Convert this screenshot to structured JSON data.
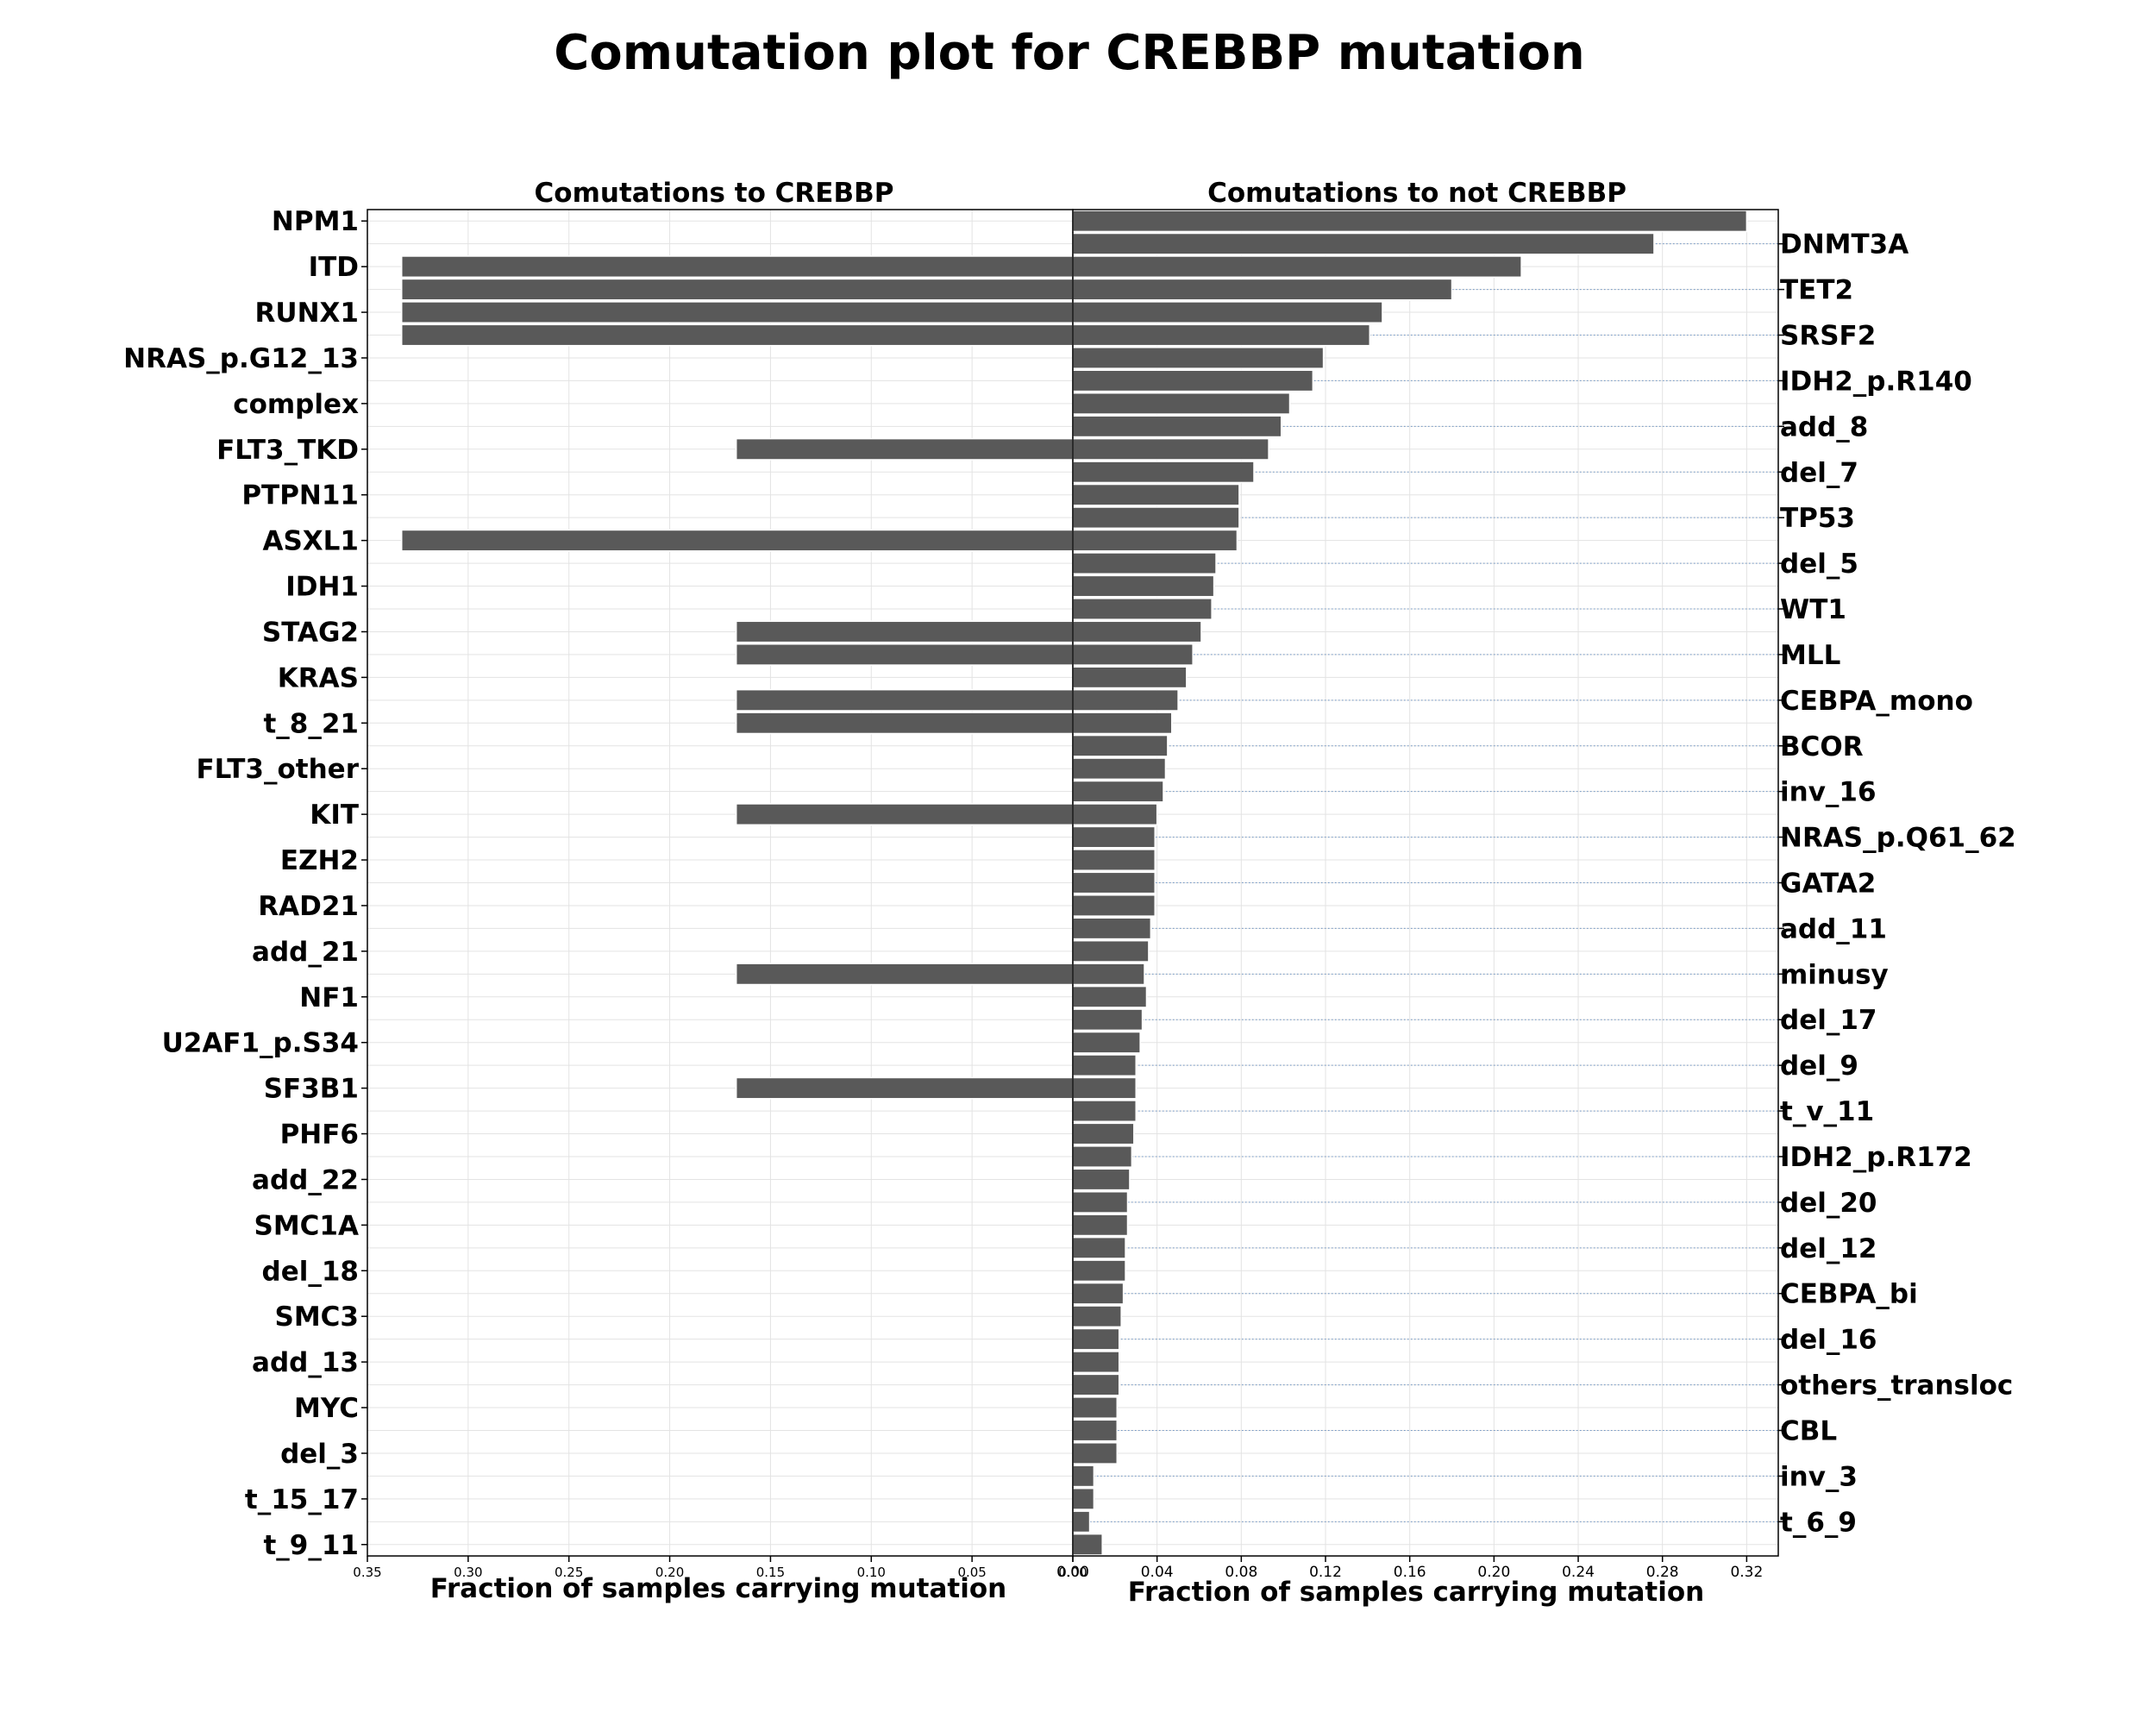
{
  "chart_data": {
    "type": "bar",
    "title": "Comutation plot for CREBBP mutation",
    "left_panel": {
      "title": "Comutations to CREBBP",
      "xlabel": "Fraction of samples carrying mutation",
      "xlim": [
        0.35,
        0.0
      ],
      "ticks": [
        "0.35",
        "0.30",
        "0.25",
        "0.20",
        "0.15",
        "0.10",
        "0.05",
        "0.00"
      ]
    },
    "right_panel": {
      "title": "Comutations to not CREBBP",
      "xlabel": "Fraction of samples carrying mutation",
      "xlim": [
        0.0,
        0.335
      ],
      "ticks": [
        "0.00",
        "0.04",
        "0.08",
        "0.12",
        "0.16",
        "0.20",
        "0.24",
        "0.28",
        "0.32"
      ]
    },
    "left_labels": [
      "NPM1",
      "ITD",
      "RUNX1",
      "NRAS_p.G12_13",
      "complex",
      "FLT3_TKD",
      "PTPN11",
      "ASXL1",
      "IDH1",
      "STAG2",
      "KRAS",
      "t_8_21",
      "FLT3_other",
      "KIT",
      "EZH2",
      "RAD21",
      "add_21",
      "NF1",
      "U2AF1_p.S34",
      "SF3B1",
      "PHF6",
      "add_22",
      "SMC1A",
      "del_18",
      "SMC3",
      "add_13",
      "MYC",
      "del_3",
      "t_15_17",
      "t_9_11"
    ],
    "right_labels": [
      "DNMT3A",
      "TET2",
      "SRSF2",
      "IDH2_p.R140",
      "add_8",
      "del_7",
      "TP53",
      "del_5",
      "WT1",
      "MLL",
      "CEBPA_mono",
      "BCOR",
      "inv_16",
      "NRAS_p.Q61_62",
      "GATA2",
      "add_11",
      "minusy",
      "del_17",
      "del_9",
      "t_v_11",
      "IDH2_p.R172",
      "del_20",
      "del_12",
      "CEBPA_bi",
      "del_16",
      "others_transloc",
      "CBL",
      "inv_3",
      "t_6_9"
    ],
    "categories": [
      "NPM1",
      "DNMT3A",
      "ITD",
      "TET2",
      "RUNX1",
      "SRSF2",
      "NRAS_p.G12_13",
      "IDH2_p.R140",
      "complex",
      "add_8",
      "FLT3_TKD",
      "del_7",
      "PTPN11",
      "TP53",
      "ASXL1",
      "del_5",
      "IDH1",
      "WT1",
      "STAG2",
      "MLL",
      "KRAS",
      "CEBPA_mono",
      "t_8_21",
      "BCOR",
      "FLT3_other",
      "inv_16",
      "KIT",
      "NRAS_p.Q61_62",
      "EZH2",
      "GATA2",
      "RAD21",
      "add_11",
      "add_21",
      "minusy",
      "NF1",
      "del_17",
      "U2AF1_p.S34",
      "del_9",
      "SF3B1",
      "t_v_11",
      "PHF6",
      "IDH2_p.R172",
      "add_22",
      "del_20",
      "SMC1A",
      "del_12",
      "del_18",
      "CEBPA_bi",
      "SMC3",
      "del_16",
      "add_13",
      "others_transloc",
      "MYC",
      "CBL",
      "del_3",
      "inv_3",
      "t_15_17",
      "t_6_9",
      "t_9_11"
    ],
    "series": [
      {
        "name": "Comutations to CREBBP",
        "values": [
          0,
          0,
          0.333,
          0.333,
          0.333,
          0.333,
          0,
          0,
          0,
          0,
          0.167,
          0,
          0,
          0,
          0.333,
          0,
          0,
          0,
          0.167,
          0.167,
          0,
          0.167,
          0.167,
          0,
          0,
          0,
          0.167,
          0,
          0,
          0,
          0,
          0,
          0,
          0.167,
          0,
          0,
          0,
          0,
          0.167,
          0,
          0,
          0,
          0,
          0,
          0,
          0,
          0,
          0,
          0,
          0,
          0,
          0,
          0,
          0,
          0,
          0,
          0,
          0,
          0
        ]
      },
      {
        "name": "Comutations to not CREBBP",
        "values": [
          0.32,
          0.276,
          0.213,
          0.18,
          0.147,
          0.141,
          0.119,
          0.114,
          0.103,
          0.099,
          0.093,
          0.086,
          0.079,
          0.079,
          0.078,
          0.068,
          0.067,
          0.066,
          0.061,
          0.057,
          0.054,
          0.05,
          0.047,
          0.045,
          0.044,
          0.043,
          0.04,
          0.039,
          0.039,
          0.039,
          0.039,
          0.037,
          0.036,
          0.034,
          0.035,
          0.033,
          0.032,
          0.03,
          0.03,
          0.03,
          0.029,
          0.028,
          0.027,
          0.026,
          0.026,
          0.025,
          0.025,
          0.024,
          0.023,
          0.022,
          0.022,
          0.022,
          0.021,
          0.021,
          0.021,
          0.01,
          0.01,
          0.008,
          0.014
        ]
      }
    ]
  }
}
